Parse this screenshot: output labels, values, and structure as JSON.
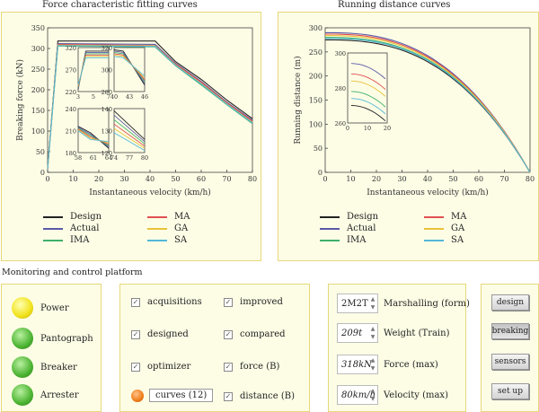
{
  "charts": {
    "left_title": "Force characteristic fitting curves",
    "right_title": "Running distance curves"
  },
  "legend": [
    {
      "label": "Design",
      "color": "#222222"
    },
    {
      "label": "MA",
      "color": "#e05050"
    },
    {
      "label": "Actual",
      "color": "#5a5aa8"
    },
    {
      "label": "GA",
      "color": "#e8c23a"
    },
    {
      "label": "IMA",
      "color": "#3fb06a"
    },
    {
      "label": "SA",
      "color": "#52b8d8"
    }
  ],
  "chart_data": [
    {
      "type": "line",
      "title": "Force characteristic fitting curves",
      "xlabel": "Instantaneous velocity (km/h)",
      "ylabel": "Breaking force (kN)",
      "xlim": [
        0,
        80
      ],
      "ylim": [
        0,
        350
      ],
      "xticks": [
        "0",
        "10",
        "20",
        "30",
        "40",
        "50",
        "60",
        "70",
        "80"
      ],
      "yticks": [
        "0",
        "50",
        "100",
        "150",
        "200",
        "250",
        "300",
        "350"
      ],
      "legend": "below",
      "series": [
        {
          "name": "Design",
          "color": "#222222",
          "points": [
            [
              0,
              10
            ],
            [
              4,
              318
            ],
            [
              42,
              318
            ],
            [
              50,
              268
            ],
            [
              60,
              225
            ],
            [
              70,
              175
            ],
            [
              80,
              130
            ]
          ]
        },
        {
          "name": "Actual",
          "color": "#5a5aa8",
          "points": [
            [
              0,
              8
            ],
            [
              4,
              312
            ],
            [
              42,
              310
            ],
            [
              50,
              264
            ],
            [
              60,
              220
            ],
            [
              70,
              170
            ],
            [
              80,
              126
            ]
          ]
        },
        {
          "name": "IMA",
          "color": "#3fb06a",
          "points": [
            [
              0,
              8
            ],
            [
              4,
              306
            ],
            [
              42,
              304
            ],
            [
              50,
              258
            ],
            [
              60,
              212
            ],
            [
              70,
              164
            ],
            [
              80,
              118
            ]
          ]
        },
        {
          "name": "MA",
          "color": "#e05050",
          "points": [
            [
              0,
              8
            ],
            [
              4,
              310
            ],
            [
              42,
              307
            ],
            [
              50,
              262
            ],
            [
              60,
              218
            ],
            [
              70,
              168
            ],
            [
              80,
              124
            ]
          ]
        },
        {
          "name": "GA",
          "color": "#e8c23a",
          "points": [
            [
              0,
              8
            ],
            [
              4,
              308
            ],
            [
              42,
              306
            ],
            [
              50,
              260
            ],
            [
              60,
              215
            ],
            [
              70,
              166
            ],
            [
              80,
              121
            ]
          ]
        },
        {
          "name": "SA",
          "color": "#52b8d8",
          "points": [
            [
              0,
              8
            ],
            [
              4,
              307
            ],
            [
              42,
              305
            ],
            [
              50,
              259
            ],
            [
              60,
              214
            ],
            [
              70,
              165
            ],
            [
              80,
              120
            ]
          ]
        }
      ],
      "insets": [
        {
          "xticks": [
            "3",
            "5",
            "7"
          ],
          "yticks": [
            "220",
            "270",
            "320"
          ],
          "ylim": [
            220,
            320
          ],
          "xlim": [
            3,
            7
          ]
        },
        {
          "xticks": [
            "40",
            "43",
            "46"
          ],
          "yticks": [
            "280",
            "300",
            "320"
          ],
          "ylim": [
            280,
            320
          ],
          "xlim": [
            40,
            46
          ]
        },
        {
          "xticks": [
            "58",
            "61",
            "64"
          ],
          "yticks": [
            "180",
            "210",
            "240"
          ],
          "ylim": [
            180,
            240
          ],
          "xlim": [
            58,
            64
          ]
        },
        {
          "xticks": [
            "74",
            "77",
            "80"
          ],
          "yticks": [
            "120",
            "130",
            "140"
          ],
          "ylim": [
            120,
            140
          ],
          "xlim": [
            74,
            80
          ]
        }
      ]
    },
    {
      "type": "line",
      "title": "Running distance curves",
      "xlabel": "Instantaneous velocity (km/h)",
      "ylabel": "Running distance (m)",
      "xlim": [
        0,
        80
      ],
      "ylim": [
        0,
        300
      ],
      "xticks": [
        "0",
        "10",
        "20",
        "30",
        "40",
        "50",
        "60",
        "70",
        "80"
      ],
      "yticks": [
        "0",
        "50",
        "100",
        "150",
        "200",
        "250",
        "300"
      ],
      "legend": "below",
      "series": [
        {
          "name": "Design",
          "color": "#222222",
          "start": 275
        },
        {
          "name": "Actual",
          "color": "#5a5aa8",
          "start": 290
        },
        {
          "name": "IMA",
          "color": "#3fb06a",
          "start": 280
        },
        {
          "name": "MA",
          "color": "#e05050",
          "start": 287
        },
        {
          "name": "GA",
          "color": "#e8c23a",
          "start": 284
        },
        {
          "name": "SA",
          "color": "#52b8d8",
          "start": 278
        }
      ],
      "inset": {
        "xticks": [
          "0",
          "10",
          "20"
        ],
        "yticks": [
          "260",
          "280",
          "300"
        ],
        "ylim": [
          260,
          300
        ],
        "xlim": [
          0,
          20
        ]
      }
    }
  ],
  "platform": {
    "title": "Monitoring and control platform",
    "lamps": [
      {
        "label": "Power",
        "color": "yellow"
      },
      {
        "label": "Pantograph",
        "color": "green"
      },
      {
        "label": "Breaker",
        "color": "green"
      },
      {
        "label": "Arrester",
        "color": "green"
      }
    ],
    "checkboxes_left": [
      "acquisitions",
      "designed",
      "optimizer"
    ],
    "checkboxes_right": [
      "improved",
      "compared",
      "force (B)",
      "distance (B)"
    ],
    "curves_label": "curves (12)",
    "params": [
      {
        "value": "2M2T",
        "label": "Marshalling (form)"
      },
      {
        "value": "209t",
        "label": "Weight (Train)"
      },
      {
        "value": "318kN",
        "label": "Force (max)"
      },
      {
        "value": "80km/h",
        "label": "Velocity (max)"
      }
    ],
    "buttons": [
      "design",
      "breaking",
      "sensors",
      "set up"
    ]
  }
}
